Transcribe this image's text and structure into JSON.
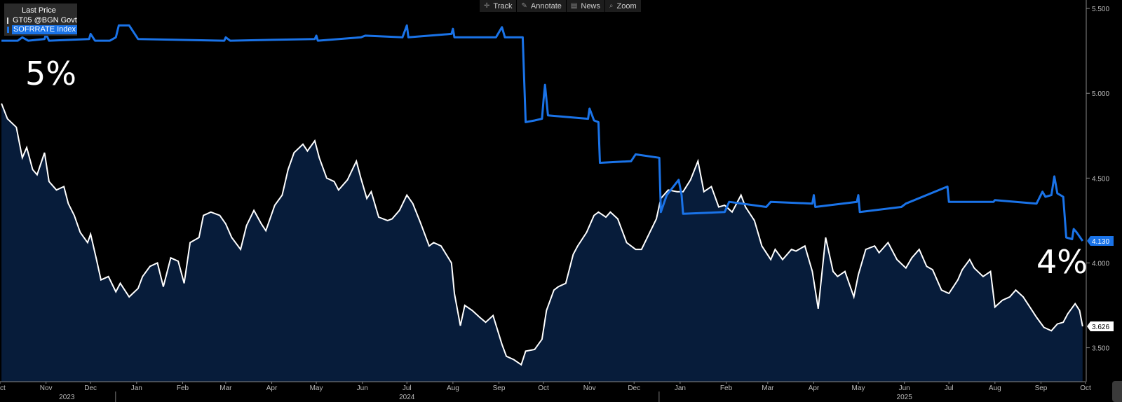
{
  "toolbar": {
    "track": "Track",
    "annotate": "Annotate",
    "news": "News",
    "zoom": "Zoom"
  },
  "legend": {
    "header": "Last Price",
    "entries": [
      {
        "label": "GT05 @BGN Govt",
        "color": "#ffffff"
      },
      {
        "label": "SOFRRATE Index",
        "color": "#1a73e8"
      }
    ]
  },
  "annotations": {
    "left": "5%",
    "right": "4%"
  },
  "colors": {
    "background": "#000000",
    "area_fill": "#071c3a",
    "gt05_line": "#ffffff",
    "sofr_line": "#1a73e8"
  },
  "chart_data": {
    "type": "line",
    "x_unit": "date",
    "x_range": [
      "2023-10-01",
      "2025-10-01"
    ],
    "ylim": [
      3.3,
      5.55
    ],
    "y_ticks": [
      3.5,
      4.0,
      4.5,
      5.0,
      5.5
    ],
    "y_tick_labels": [
      "3.500",
      "4.000",
      "4.500",
      "5.000",
      "5.500"
    ],
    "month_ticks": [
      {
        "date": "2023-10-01",
        "label": "Oct"
      },
      {
        "date": "2023-11-01",
        "label": "Nov"
      },
      {
        "date": "2023-12-01",
        "label": "Dec"
      },
      {
        "date": "2024-01-01",
        "label": "Jan"
      },
      {
        "date": "2024-02-01",
        "label": "Feb"
      },
      {
        "date": "2024-03-01",
        "label": "Mar"
      },
      {
        "date": "2024-04-01",
        "label": "Apr"
      },
      {
        "date": "2024-05-01",
        "label": "May"
      },
      {
        "date": "2024-06-01",
        "label": "Jun"
      },
      {
        "date": "2024-07-01",
        "label": "Jul"
      },
      {
        "date": "2024-08-01",
        "label": "Aug"
      },
      {
        "date": "2024-09-01",
        "label": "Sep"
      },
      {
        "date": "2024-10-01",
        "label": "Oct"
      },
      {
        "date": "2024-11-01",
        "label": "Nov"
      },
      {
        "date": "2024-12-01",
        "label": "Dec"
      },
      {
        "date": "2025-01-01",
        "label": "Jan"
      },
      {
        "date": "2025-02-01",
        "label": "Feb"
      },
      {
        "date": "2025-03-01",
        "label": "Mar"
      },
      {
        "date": "2025-04-01",
        "label": "Apr"
      },
      {
        "date": "2025-05-01",
        "label": "May"
      },
      {
        "date": "2025-06-01",
        "label": "Jun"
      },
      {
        "date": "2025-07-01",
        "label": "Jul"
      },
      {
        "date": "2025-08-01",
        "label": "Aug"
      },
      {
        "date": "2025-09-01",
        "label": "Sep"
      },
      {
        "date": "2025-10-01",
        "label": "Oct"
      }
    ],
    "year_ticks": [
      {
        "date": "2023-11-15",
        "label": "2023"
      },
      {
        "date": "2024-07-01",
        "label": "2024"
      },
      {
        "date": "2025-06-01",
        "label": "2025"
      }
    ],
    "year_separators": [
      "2024-01-01",
      "2025-01-01"
    ],
    "series": [
      {
        "name": "GT05 @BGN Govt",
        "last_value_label": "3.626",
        "style": "area",
        "points": [
          [
            "2023-10-02",
            4.94
          ],
          [
            "2023-10-06",
            4.85
          ],
          [
            "2023-10-12",
            4.8
          ],
          [
            "2023-10-16",
            4.62
          ],
          [
            "2023-10-19",
            4.68
          ],
          [
            "2023-10-23",
            4.55
          ],
          [
            "2023-10-26",
            4.52
          ],
          [
            "2023-10-31",
            4.65
          ],
          [
            "2023-11-03",
            4.48
          ],
          [
            "2023-11-08",
            4.43
          ],
          [
            "2023-11-13",
            4.45
          ],
          [
            "2023-11-16",
            4.35
          ],
          [
            "2023-11-20",
            4.28
          ],
          [
            "2023-11-24",
            4.18
          ],
          [
            "2023-11-29",
            4.12
          ],
          [
            "2023-12-01",
            4.17
          ],
          [
            "2023-12-05",
            4.02
          ],
          [
            "2023-12-08",
            3.9
          ],
          [
            "2023-12-13",
            3.92
          ],
          [
            "2023-12-18",
            3.83
          ],
          [
            "2023-12-21",
            3.88
          ],
          [
            "2023-12-27",
            3.8
          ],
          [
            "2024-01-02",
            3.85
          ],
          [
            "2024-01-05",
            3.92
          ],
          [
            "2024-01-10",
            3.98
          ],
          [
            "2024-01-15",
            4.0
          ],
          [
            "2024-01-19",
            3.86
          ],
          [
            "2024-01-24",
            4.03
          ],
          [
            "2024-01-29",
            4.01
          ],
          [
            "2024-02-02",
            3.88
          ],
          [
            "2024-02-06",
            4.12
          ],
          [
            "2024-02-12",
            4.15
          ],
          [
            "2024-02-15",
            4.28
          ],
          [
            "2024-02-20",
            4.3
          ],
          [
            "2024-02-26",
            4.28
          ],
          [
            "2024-03-01",
            4.23
          ],
          [
            "2024-03-05",
            4.15
          ],
          [
            "2024-03-11",
            4.08
          ],
          [
            "2024-03-15",
            4.22
          ],
          [
            "2024-03-20",
            4.31
          ],
          [
            "2024-03-25",
            4.23
          ],
          [
            "2024-03-28",
            4.19
          ],
          [
            "2024-04-03",
            4.34
          ],
          [
            "2024-04-08",
            4.4
          ],
          [
            "2024-04-12",
            4.55
          ],
          [
            "2024-04-16",
            4.65
          ],
          [
            "2024-04-22",
            4.7
          ],
          [
            "2024-04-25",
            4.66
          ],
          [
            "2024-04-30",
            4.72
          ],
          [
            "2024-05-03",
            4.62
          ],
          [
            "2024-05-08",
            4.5
          ],
          [
            "2024-05-13",
            4.48
          ],
          [
            "2024-05-16",
            4.43
          ],
          [
            "2024-05-22",
            4.49
          ],
          [
            "2024-05-28",
            4.6
          ],
          [
            "2024-05-31",
            4.5
          ],
          [
            "2024-06-04",
            4.38
          ],
          [
            "2024-06-07",
            4.42
          ],
          [
            "2024-06-12",
            4.27
          ],
          [
            "2024-06-18",
            4.25
          ],
          [
            "2024-06-21",
            4.26
          ],
          [
            "2024-06-26",
            4.31
          ],
          [
            "2024-07-01",
            4.4
          ],
          [
            "2024-07-05",
            4.35
          ],
          [
            "2024-07-10",
            4.24
          ],
          [
            "2024-07-16",
            4.1
          ],
          [
            "2024-07-19",
            4.12
          ],
          [
            "2024-07-24",
            4.1
          ],
          [
            "2024-07-31",
            4.0
          ],
          [
            "2024-08-02",
            3.82
          ],
          [
            "2024-08-06",
            3.63
          ],
          [
            "2024-08-09",
            3.75
          ],
          [
            "2024-08-14",
            3.72
          ],
          [
            "2024-08-19",
            3.68
          ],
          [
            "2024-08-23",
            3.65
          ],
          [
            "2024-08-28",
            3.69
          ],
          [
            "2024-09-03",
            3.52
          ],
          [
            "2024-09-06",
            3.45
          ],
          [
            "2024-09-11",
            3.43
          ],
          [
            "2024-09-16",
            3.4
          ],
          [
            "2024-09-19",
            3.48
          ],
          [
            "2024-09-25",
            3.49
          ],
          [
            "2024-09-30",
            3.55
          ],
          [
            "2024-10-03",
            3.72
          ],
          [
            "2024-10-08",
            3.84
          ],
          [
            "2024-10-11",
            3.86
          ],
          [
            "2024-10-16",
            3.88
          ],
          [
            "2024-10-21",
            4.05
          ],
          [
            "2024-10-24",
            4.1
          ],
          [
            "2024-10-30",
            4.18
          ],
          [
            "2024-11-04",
            4.28
          ],
          [
            "2024-11-07",
            4.3
          ],
          [
            "2024-11-12",
            4.27
          ],
          [
            "2024-11-15",
            4.3
          ],
          [
            "2024-11-20",
            4.26
          ],
          [
            "2024-11-26",
            4.12
          ],
          [
            "2024-12-02",
            4.08
          ],
          [
            "2024-12-06",
            4.08
          ],
          [
            "2024-12-11",
            4.17
          ],
          [
            "2024-12-16",
            4.26
          ],
          [
            "2024-12-19",
            4.38
          ],
          [
            "2024-12-24",
            4.43
          ],
          [
            "2024-12-30",
            4.42
          ],
          [
            "2025-01-03",
            4.42
          ],
          [
            "2025-01-08",
            4.49
          ],
          [
            "2025-01-13",
            4.6
          ],
          [
            "2025-01-17",
            4.42
          ],
          [
            "2025-01-22",
            4.45
          ],
          [
            "2025-01-27",
            4.33
          ],
          [
            "2025-01-31",
            4.34
          ],
          [
            "2025-02-05",
            4.3
          ],
          [
            "2025-02-11",
            4.4
          ],
          [
            "2025-02-14",
            4.33
          ],
          [
            "2025-02-20",
            4.25
          ],
          [
            "2025-02-25",
            4.1
          ],
          [
            "2025-03-03",
            4.02
          ],
          [
            "2025-03-06",
            4.08
          ],
          [
            "2025-03-11",
            4.02
          ],
          [
            "2025-03-17",
            4.08
          ],
          [
            "2025-03-20",
            4.07
          ],
          [
            "2025-03-26",
            4.1
          ],
          [
            "2025-03-31",
            3.95
          ],
          [
            "2025-04-04",
            3.73
          ],
          [
            "2025-04-09",
            4.15
          ],
          [
            "2025-04-14",
            3.95
          ],
          [
            "2025-04-17",
            3.92
          ],
          [
            "2025-04-22",
            3.95
          ],
          [
            "2025-04-28",
            3.8
          ],
          [
            "2025-05-01",
            3.93
          ],
          [
            "2025-05-06",
            4.08
          ],
          [
            "2025-05-12",
            4.1
          ],
          [
            "2025-05-15",
            4.06
          ],
          [
            "2025-05-21",
            4.12
          ],
          [
            "2025-05-27",
            4.02
          ],
          [
            "2025-06-02",
            3.97
          ],
          [
            "2025-06-06",
            4.03
          ],
          [
            "2025-06-11",
            4.08
          ],
          [
            "2025-06-16",
            3.98
          ],
          [
            "2025-06-20",
            3.96
          ],
          [
            "2025-06-26",
            3.84
          ],
          [
            "2025-07-01",
            3.82
          ],
          [
            "2025-07-07",
            3.9
          ],
          [
            "2025-07-10",
            3.96
          ],
          [
            "2025-07-15",
            4.02
          ],
          [
            "2025-07-18",
            3.97
          ],
          [
            "2025-07-24",
            3.92
          ],
          [
            "2025-07-29",
            3.95
          ],
          [
            "2025-08-01",
            3.74
          ],
          [
            "2025-08-06",
            3.78
          ],
          [
            "2025-08-11",
            3.8
          ],
          [
            "2025-08-15",
            3.84
          ],
          [
            "2025-08-20",
            3.8
          ],
          [
            "2025-08-26",
            3.72
          ],
          [
            "2025-08-29",
            3.68
          ],
          [
            "2025-09-03",
            3.62
          ],
          [
            "2025-09-08",
            3.6
          ],
          [
            "2025-09-12",
            3.64
          ],
          [
            "2025-09-16",
            3.65
          ],
          [
            "2025-09-19",
            3.7
          ],
          [
            "2025-09-24",
            3.76
          ],
          [
            "2025-09-27",
            3.72
          ],
          [
            "2025-09-29",
            3.626
          ]
        ]
      },
      {
        "name": "SOFRRATE Index",
        "last_value_label": "4.130",
        "style": "line",
        "points": [
          [
            "2023-10-02",
            5.31
          ],
          [
            "2023-10-13",
            5.31
          ],
          [
            "2023-10-16",
            5.33
          ],
          [
            "2023-10-20",
            5.31
          ],
          [
            "2023-10-31",
            5.32
          ],
          [
            "2023-11-01",
            5.35
          ],
          [
            "2023-11-03",
            5.31
          ],
          [
            "2023-11-30",
            5.32
          ],
          [
            "2023-12-01",
            5.35
          ],
          [
            "2023-12-04",
            5.31
          ],
          [
            "2023-12-14",
            5.31
          ],
          [
            "2023-12-18",
            5.33
          ],
          [
            "2023-12-20",
            5.4
          ],
          [
            "2023-12-27",
            5.4
          ],
          [
            "2024-01-02",
            5.32
          ],
          [
            "2024-02-29",
            5.31
          ],
          [
            "2024-03-01",
            5.33
          ],
          [
            "2024-03-04",
            5.31
          ],
          [
            "2024-04-30",
            5.32
          ],
          [
            "2024-05-01",
            5.34
          ],
          [
            "2024-05-02",
            5.31
          ],
          [
            "2024-05-31",
            5.33
          ],
          [
            "2024-06-03",
            5.34
          ],
          [
            "2024-06-28",
            5.33
          ],
          [
            "2024-07-01",
            5.4
          ],
          [
            "2024-07-02",
            5.33
          ],
          [
            "2024-07-31",
            5.35
          ],
          [
            "2024-08-01",
            5.38
          ],
          [
            "2024-08-02",
            5.33
          ],
          [
            "2024-08-30",
            5.33
          ],
          [
            "2024-09-03",
            5.39
          ],
          [
            "2024-09-05",
            5.33
          ],
          [
            "2024-09-17",
            5.33
          ],
          [
            "2024-09-19",
            4.83
          ],
          [
            "2024-09-25",
            4.84
          ],
          [
            "2024-09-30",
            4.85
          ],
          [
            "2024-10-01",
            4.96
          ],
          [
            "2024-10-02",
            5.05
          ],
          [
            "2024-10-04",
            4.87
          ],
          [
            "2024-10-31",
            4.85
          ],
          [
            "2024-11-01",
            4.91
          ],
          [
            "2024-11-04",
            4.84
          ],
          [
            "2024-11-07",
            4.83
          ],
          [
            "2024-11-08",
            4.59
          ],
          [
            "2024-11-29",
            4.6
          ],
          [
            "2024-12-02",
            4.64
          ],
          [
            "2024-12-18",
            4.62
          ],
          [
            "2024-12-19",
            4.3
          ],
          [
            "2024-12-23",
            4.4
          ],
          [
            "2024-12-31",
            4.49
          ],
          [
            "2025-01-02",
            4.4
          ],
          [
            "2025-01-03",
            4.29
          ],
          [
            "2025-01-31",
            4.3
          ],
          [
            "2025-02-03",
            4.36
          ],
          [
            "2025-02-28",
            4.33
          ],
          [
            "2025-03-03",
            4.36
          ],
          [
            "2025-03-31",
            4.35
          ],
          [
            "2025-04-01",
            4.4
          ],
          [
            "2025-04-02",
            4.33
          ],
          [
            "2025-04-30",
            4.36
          ],
          [
            "2025-05-01",
            4.4
          ],
          [
            "2025-05-02",
            4.3
          ],
          [
            "2025-05-30",
            4.33
          ],
          [
            "2025-06-02",
            4.35
          ],
          [
            "2025-06-30",
            4.45
          ],
          [
            "2025-07-01",
            4.36
          ],
          [
            "2025-07-31",
            4.36
          ],
          [
            "2025-08-01",
            4.37
          ],
          [
            "2025-08-29",
            4.35
          ],
          [
            "2025-09-02",
            4.42
          ],
          [
            "2025-09-04",
            4.39
          ],
          [
            "2025-09-08",
            4.4
          ],
          [
            "2025-09-10",
            4.51
          ],
          [
            "2025-09-12",
            4.41
          ],
          [
            "2025-09-16",
            4.39
          ],
          [
            "2025-09-18",
            4.15
          ],
          [
            "2025-09-22",
            4.14
          ],
          [
            "2025-09-23",
            4.2
          ],
          [
            "2025-09-25",
            4.18
          ],
          [
            "2025-09-29",
            4.13
          ]
        ]
      }
    ]
  }
}
